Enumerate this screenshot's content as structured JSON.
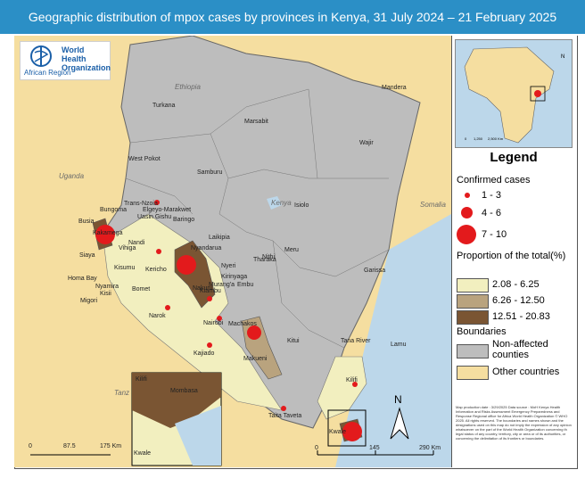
{
  "title": "Geographic distribution of mpox cases by provinces in Kenya, 31 July 2024 – 21 February 2025",
  "logo": {
    "line1": "World Health",
    "line2": "Organization",
    "region": "African Region"
  },
  "legend": {
    "title": "Legend",
    "cases_title": "Confirmed cases",
    "cases": [
      "1 - 3",
      "4 - 6",
      "7 - 10"
    ],
    "proportion_title": "Proportion of the total(%)",
    "proportions": [
      {
        "label": "2.08 - 6.25",
        "color": "#f2efbf"
      },
      {
        "label": "6.26 - 12.50",
        "color": "#b9a37e"
      },
      {
        "label": "12.51 - 20.83",
        "color": "#7a5533"
      }
    ],
    "boundaries_title": "Boundaries",
    "boundaries": [
      {
        "label": "Non-affected counties",
        "color": "#bdbdbd"
      },
      {
        "label": "Other countries",
        "color": "#f5dea0"
      }
    ]
  },
  "countries": [
    "Ethiopia",
    "Uganda",
    "Somalia",
    "Tanz"
  ],
  "lake_label": "Kenya",
  "counties": [
    "Turkana",
    "Marsabit",
    "Mandera",
    "Wajir",
    "West Pokot",
    "Samburu",
    "Isiolo",
    "Trans-Nzoia",
    "Bungoma",
    "Elgeyo-Marakwet",
    "Uasin Gishu",
    "Baringo",
    "Busia",
    "Kakamega",
    "Laikipia",
    "Meru",
    "Siaya",
    "Vihiga",
    "Nandi",
    "Kisumu",
    "Kericho",
    "Nyandarua",
    "Homa Bay",
    "Nakuru",
    "Nyeri",
    "Tharaka",
    "Kirinyaga",
    "Garissa",
    "Nyamira",
    "Kisii",
    "Bomet",
    "Embu",
    "Migori",
    "Kiambu",
    "Murang'a",
    "Narok",
    "Nairobi",
    "Machakos",
    "Kitui",
    "Tana River",
    "Kajiado",
    "Makueni",
    "Lamu",
    "Kilifi",
    "Taita Taveta",
    "Kwale",
    "Mombasa",
    "Nithi"
  ],
  "scale_main": [
    "0",
    "145",
    "290 Km"
  ],
  "scale_inset": [
    "0",
    "87.5",
    "175 Km"
  ],
  "inset_labels": [
    "Kilifi",
    "Mombasa",
    "Kwale"
  ],
  "north": "N",
  "disclaimer": "Map production date : 3/29/2025 Data source : MoH Kenya Health Information and Risks Assessment Emergency Preparedness and Response Regional office for Africa World Health Organization © WHO 2025. All rights reserved. The boundaries and names shown and the designations used on this map do not imply the expression of any opinion whatsoever on the part of the World Health Organization concerning th legal status of any country, territory, city or area or of its authorities, or concerning the delimitation of its frontiers or boundaries.",
  "inset_scale": [
    "0",
    "1,250",
    "2,500 Km"
  ]
}
